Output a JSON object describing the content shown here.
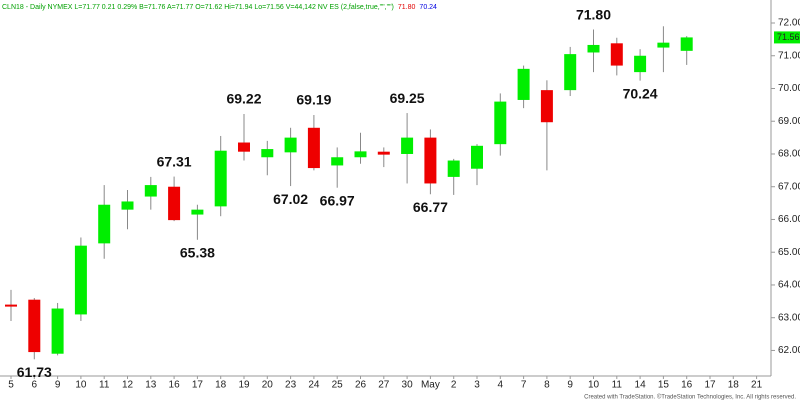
{
  "chart_data": {
    "type": "candlestick",
    "header": [
      {
        "text": "CLN18 - Daily NYMEX L=71.77 0.21 0.29% B=71.76 A=71.77 O=71.62 Hi=71.94 Lo=71.56 V=44,142 NV ES (2,false,true,\"\",\"\")",
        "color": "#00a000"
      },
      {
        "text": "71.80",
        "color": "#e00000"
      },
      {
        "text": "70.24",
        "color": "#0000e0"
      }
    ],
    "footer": "Created with TradeStation. ©TradeStation Technologies, Inc. All rights reserved.",
    "categories": [
      "5",
      "6",
      "9",
      "10",
      "11",
      "12",
      "13",
      "16",
      "17",
      "18",
      "19",
      "20",
      "23",
      "24",
      "25",
      "26",
      "27",
      "30",
      "May",
      "2",
      "3",
      "4",
      "7",
      "8",
      "9",
      "10",
      "11",
      "14",
      "15",
      "16",
      "17",
      "18",
      "21"
    ],
    "open": [
      63.4,
      63.55,
      61.9,
      63.1,
      65.27,
      66.3,
      66.7,
      67.0,
      66.15,
      66.4,
      68.35,
      67.9,
      68.05,
      68.8,
      67.65,
      67.9,
      68.07,
      68.0,
      68.5,
      67.3,
      67.55,
      68.3,
      69.65,
      69.95,
      69.95,
      71.1,
      71.38,
      70.5,
      71.25,
      71.15,
      null,
      null,
      null
    ],
    "high": [
      63.85,
      63.6,
      63.45,
      65.45,
      67.05,
      66.9,
      67.3,
      67.31,
      66.45,
      68.55,
      69.22,
      68.4,
      68.8,
      69.19,
      68.2,
      68.65,
      68.2,
      69.25,
      68.75,
      67.85,
      68.3,
      69.85,
      70.7,
      70.25,
      71.27,
      71.8,
      71.55,
      71.2,
      71.9,
      71.6,
      null,
      null,
      null
    ],
    "low": [
      62.9,
      61.73,
      61.85,
      62.9,
      64.8,
      65.7,
      66.3,
      65.95,
      65.38,
      66.1,
      67.8,
      67.35,
      67.02,
      67.5,
      66.97,
      67.7,
      67.6,
      67.1,
      66.77,
      66.75,
      67.05,
      67.95,
      69.4,
      67.5,
      69.77,
      70.5,
      70.4,
      70.24,
      70.5,
      70.72,
      null,
      null,
      null
    ],
    "close": [
      63.35,
      61.95,
      63.28,
      65.2,
      66.45,
      66.55,
      67.05,
      65.98,
      66.3,
      68.1,
      68.07,
      68.15,
      68.5,
      67.57,
      67.9,
      68.08,
      67.98,
      68.5,
      67.1,
      67.8,
      68.25,
      69.6,
      70.6,
      68.97,
      71.05,
      71.33,
      70.7,
      71.0,
      71.4,
      71.56,
      null,
      null,
      null
    ],
    "up_color": "#00ee00",
    "down_color": "#ee0000",
    "annotations": [
      61.73,
      67.31,
      65.38,
      69.22,
      67.02,
      69.19,
      66.97,
      69.25,
      66.77,
      {
        "value": 71.8,
        "label": "71.80"
      },
      70.24
    ],
    "last_price": {
      "value": 71.56,
      "label": "71.56"
    },
    "ylim": [
      61.25,
      72.55
    ],
    "yticks": [
      {
        "value": 62,
        "label": "62.00"
      },
      {
        "value": 63,
        "label": "63.00"
      },
      {
        "value": 64,
        "label": "64.00"
      },
      {
        "value": 65,
        "label": "65.00"
      },
      {
        "value": 66,
        "label": "66.00"
      },
      {
        "value": 67,
        "label": "67.00"
      },
      {
        "value": 68,
        "label": "68.00"
      },
      {
        "value": 69,
        "label": "69.00"
      },
      {
        "value": 70,
        "label": "70.00"
      },
      {
        "value": 71,
        "label": "71.00"
      },
      {
        "value": 72,
        "label": "72.00"
      }
    ]
  }
}
